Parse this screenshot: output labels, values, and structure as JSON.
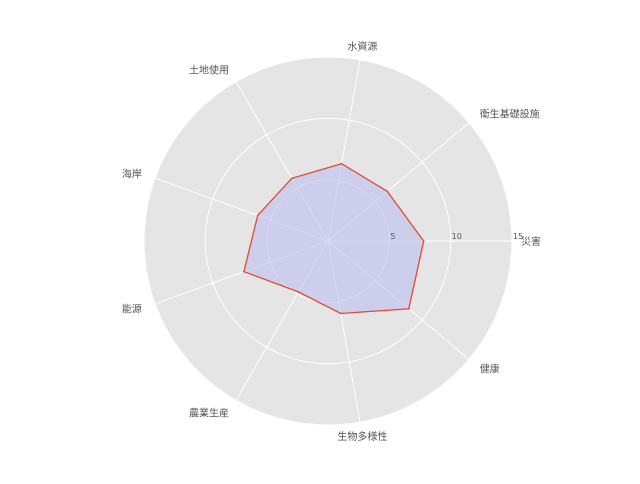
{
  "chart_data": {
    "type": "radar",
    "title": "",
    "categories": [
      "災害",
      "衛生基礎設施",
      "水資源",
      "土地使用",
      "海岸",
      "能源",
      "農業生産",
      "生物多様性",
      "健康"
    ],
    "series": [
      {
        "values": [
          7.8,
          6.3,
          6.4,
          5.9,
          6.1,
          7.3,
          4.8,
          6.0,
          8.6
        ]
      }
    ],
    "rlim": [
      0,
      15
    ],
    "rticks": [
      5,
      10,
      15
    ],
    "rtick_labels": [
      "5",
      "10",
      "15"
    ],
    "grid": true,
    "colors": {
      "background": "#e5e5e5",
      "grid": "#ffffff",
      "line": "#e24a33",
      "fill": "#bcbcf0",
      "text": "#555555"
    }
  }
}
